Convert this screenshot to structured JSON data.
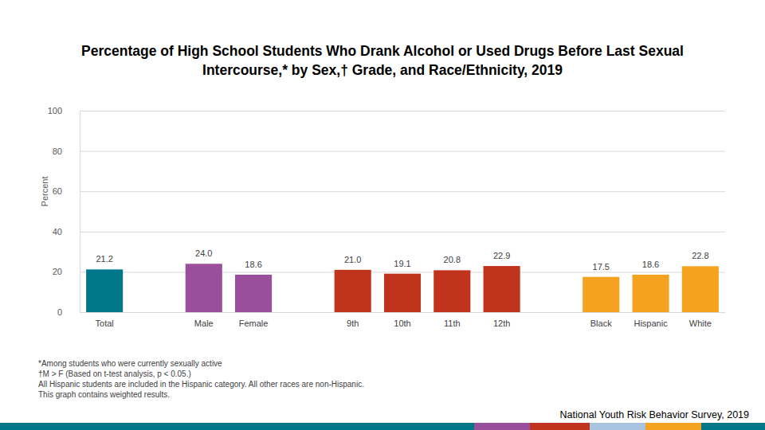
{
  "chart_data": {
    "type": "bar",
    "title": "Percentage of High School Students Who Drank Alcohol or Used Drugs Before Last Sexual Intercourse,* by Sex,† Grade, and Race/Ethnicity, 2019",
    "y_label": "Percent",
    "categories": [
      "Total",
      "Male",
      "Female",
      "9th",
      "10th",
      "11th",
      "12th",
      "Black",
      "Hispanic",
      "White"
    ],
    "values": [
      21.2,
      24.0,
      18.6,
      21.0,
      19.1,
      20.8,
      22.9,
      17.5,
      18.6,
      22.8
    ],
    "value_labels": [
      "21.2",
      "24.0",
      "18.6",
      "21.0",
      "19.1",
      "20.8",
      "22.9",
      "17.5",
      "18.6",
      "22.8"
    ],
    "colors": [
      "#00788a",
      "#994f9c",
      "#994f9c",
      "#c0341d",
      "#c0341d",
      "#c0341d",
      "#c0341d",
      "#f4a21f",
      "#f4a21f",
      "#f4a21f"
    ],
    "ylim": [
      0,
      100
    ],
    "yticks": [
      0,
      20,
      40,
      60,
      80,
      100
    ],
    "grid": true,
    "data_labels": true,
    "notes": [
      "*Among students who were currently sexually active",
      "†M > F (Based on t-test analysis, p < 0.05.)",
      "All Hispanic students are included in the Hispanic category.  All other races are non-Hispanic.",
      "This graph contains weighted results."
    ],
    "source": "National Youth Risk Behavior Survey, 2019"
  }
}
